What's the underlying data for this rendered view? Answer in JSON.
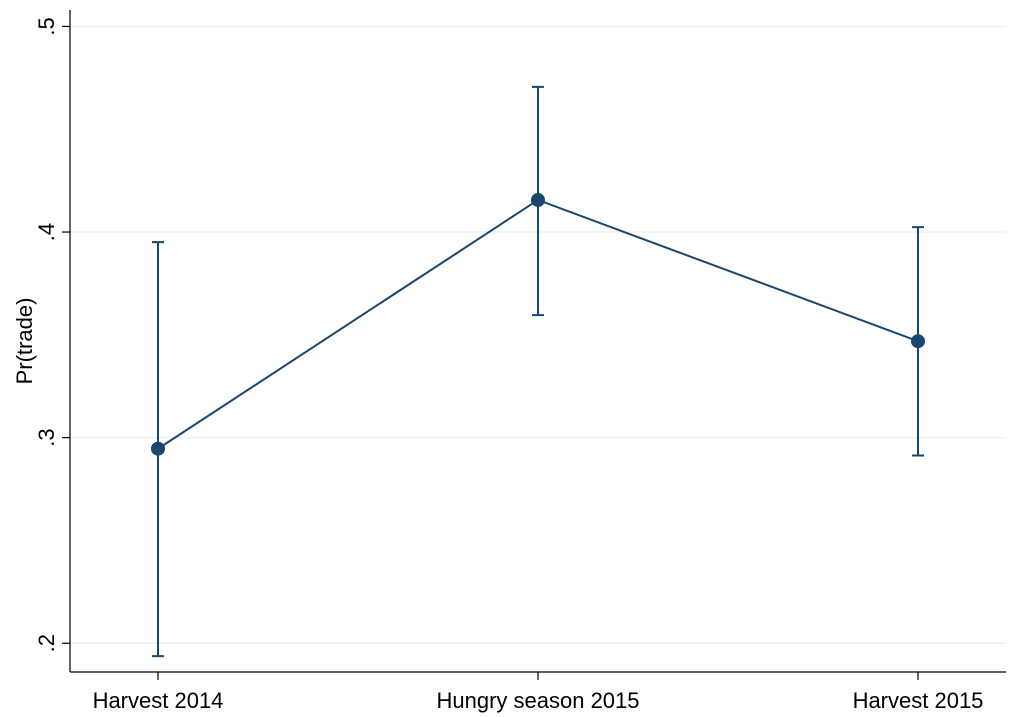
{
  "chart_data": {
    "type": "line",
    "y_label": "Pr(trade)",
    "categories": [
      "Harvest 2014",
      "Hungry season 2015",
      "Harvest 2015"
    ],
    "series": [
      {
        "color": "#1a476f",
        "values": [
          0.2946,
          0.4156,
          0.3469
        ],
        "lower": [
          0.1937,
          0.3596,
          0.2913
        ],
        "upper": [
          0.3951,
          0.4706,
          0.4024
        ]
      }
    ],
    "ylim": [
      0.186,
      0.508
    ],
    "yticks": [
      {
        "value": 0.2,
        "label": ".2"
      },
      {
        "value": 0.3,
        "label": ".3"
      },
      {
        "value": 0.4,
        "label": ".4"
      },
      {
        "value": 0.5,
        "label": ".5"
      }
    ],
    "grid": true
  }
}
